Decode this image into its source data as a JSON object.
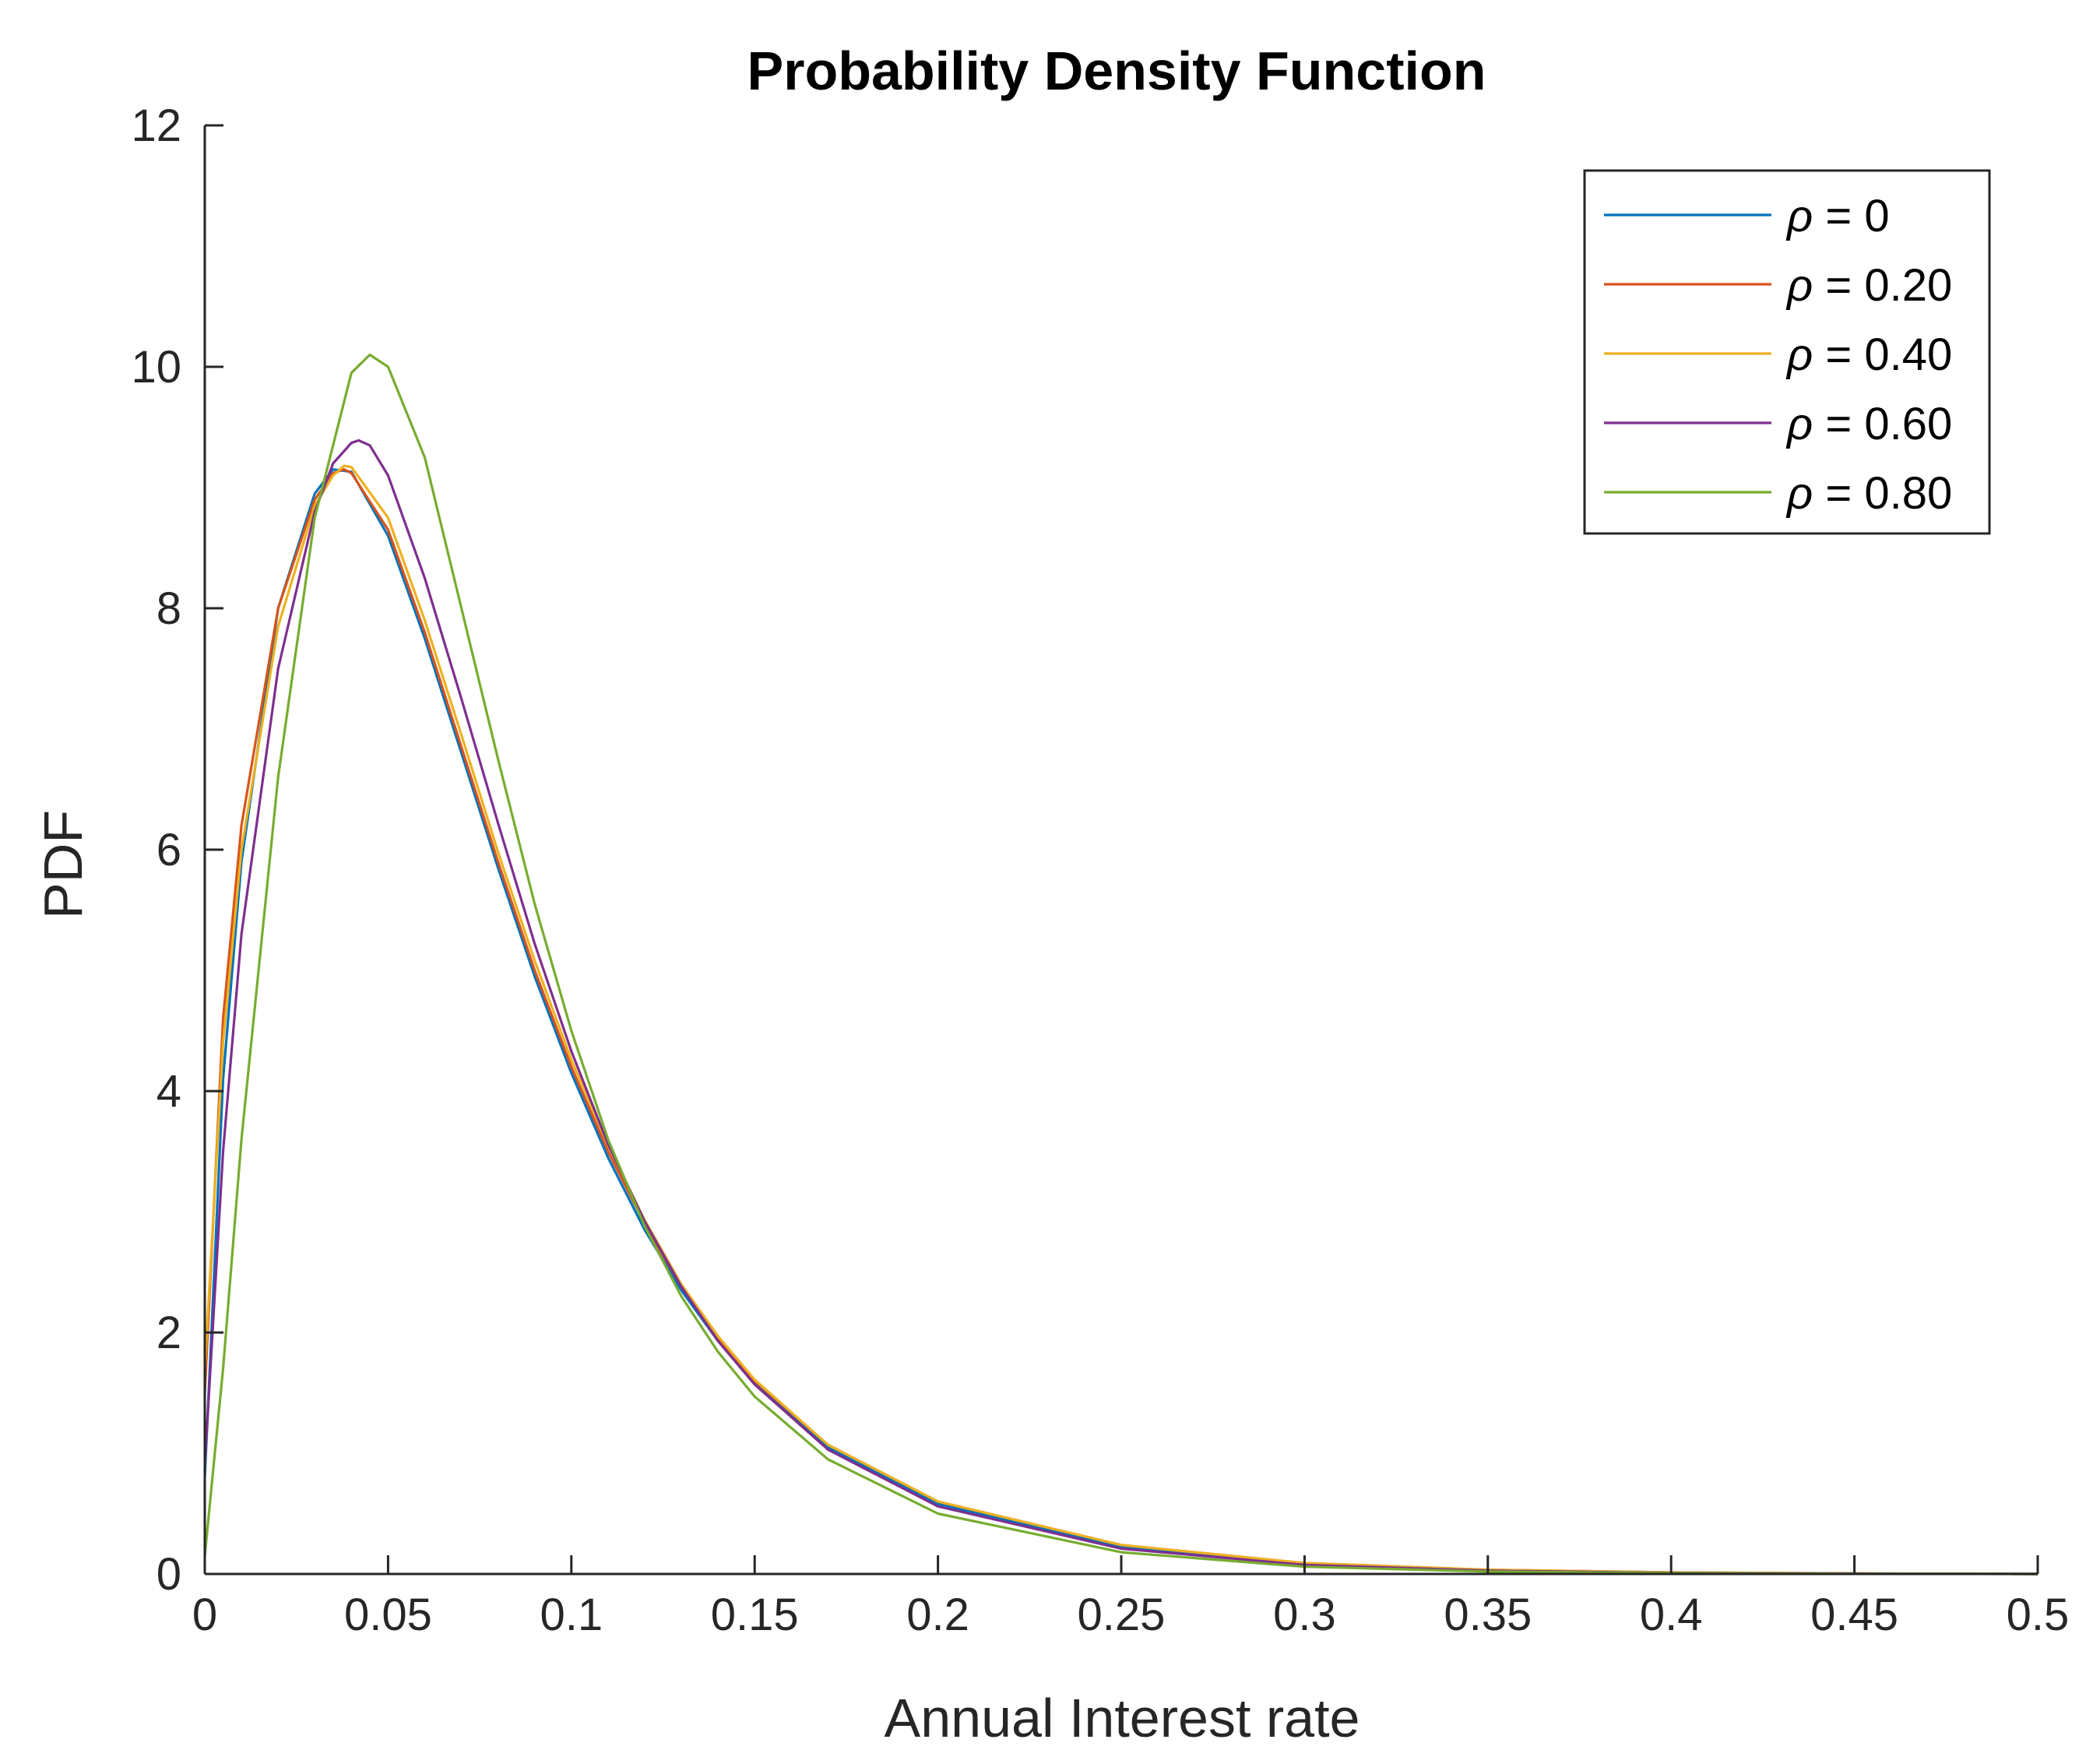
{
  "chart_data": {
    "type": "line",
    "title": "Probability Density Function",
    "xlabel": "Annual Interest rate",
    "ylabel": "PDF",
    "xlim": [
      0,
      0.5
    ],
    "ylim": [
      0,
      12
    ],
    "xticks": [
      0,
      0.05,
      0.1,
      0.15,
      0.2,
      0.25,
      0.3,
      0.35,
      0.4,
      0.45,
      0.5
    ],
    "xtick_labels": [
      "0",
      "0.05",
      "0.1",
      "0.15",
      "0.2",
      "0.25",
      "0.3",
      "0.35",
      "0.4",
      "0.45",
      "0.5"
    ],
    "yticks": [
      0,
      2,
      4,
      6,
      8,
      10,
      12
    ],
    "ytick_labels": [
      "0",
      "2",
      "4",
      "6",
      "8",
      "10",
      "12"
    ],
    "grid": false,
    "legend_position": "top-right",
    "series": [
      {
        "name": "ρ = 0",
        "legend_symbol": "ρ",
        "legend_value": "= 0",
        "color": "#0072BD",
        "x": [
          0,
          0.005,
          0.01,
          0.02,
          0.03,
          0.035,
          0.04,
          0.05,
          0.06,
          0.07,
          0.08,
          0.09,
          0.1,
          0.11,
          0.12,
          0.13,
          0.14,
          0.15,
          0.17,
          0.2,
          0.25,
          0.3,
          0.35,
          0.4,
          0.45,
          0.5
        ],
        "y": [
          0.8,
          4.1,
          5.9,
          8.0,
          8.95,
          9.15,
          9.13,
          8.6,
          7.75,
          6.8,
          5.85,
          4.95,
          4.15,
          3.45,
          2.85,
          2.35,
          1.93,
          1.58,
          1.05,
          0.58,
          0.22,
          0.08,
          0.03,
          0.01,
          0.003,
          0.0
        ]
      },
      {
        "name": "ρ = 0.20",
        "legend_symbol": "ρ",
        "legend_value": "= 0.20",
        "color": "#D95319",
        "x": [
          0,
          0.005,
          0.01,
          0.02,
          0.03,
          0.035,
          0.038,
          0.04,
          0.05,
          0.06,
          0.07,
          0.08,
          0.09,
          0.1,
          0.11,
          0.12,
          0.13,
          0.14,
          0.15,
          0.17,
          0.2,
          0.25,
          0.3,
          0.35,
          0.4,
          0.45,
          0.5
        ],
        "y": [
          1.5,
          4.6,
          6.2,
          8.0,
          8.9,
          9.12,
          9.15,
          9.12,
          8.65,
          7.8,
          6.85,
          5.9,
          5.0,
          4.2,
          3.5,
          2.9,
          2.38,
          1.96,
          1.6,
          1.07,
          0.6,
          0.24,
          0.09,
          0.035,
          0.013,
          0.004,
          0.0
        ]
      },
      {
        "name": "ρ = 0.40",
        "legend_symbol": "ρ",
        "legend_value": "= 0.40",
        "color": "#EDB120",
        "x": [
          0,
          0.005,
          0.01,
          0.02,
          0.03,
          0.035,
          0.038,
          0.04,
          0.05,
          0.06,
          0.07,
          0.08,
          0.09,
          0.1,
          0.11,
          0.12,
          0.13,
          0.14,
          0.15,
          0.17,
          0.2,
          0.25,
          0.3,
          0.35,
          0.4,
          0.45,
          0.5
        ],
        "y": [
          1.7,
          4.4,
          6.0,
          7.85,
          8.85,
          9.1,
          9.18,
          9.17,
          8.75,
          7.9,
          6.95,
          5.98,
          5.08,
          4.26,
          3.55,
          2.93,
          2.4,
          1.97,
          1.61,
          1.07,
          0.6,
          0.24,
          0.09,
          0.035,
          0.013,
          0.004,
          0.0
        ]
      },
      {
        "name": "ρ = 0.60",
        "legend_symbol": "ρ",
        "legend_value": "= 0.60",
        "color": "#7E2F8E",
        "x": [
          0,
          0.005,
          0.01,
          0.02,
          0.03,
          0.035,
          0.04,
          0.042,
          0.045,
          0.05,
          0.06,
          0.07,
          0.08,
          0.09,
          0.1,
          0.11,
          0.12,
          0.13,
          0.14,
          0.15,
          0.17,
          0.2,
          0.25,
          0.3,
          0.35,
          0.4,
          0.45,
          0.5
        ],
        "y": [
          0.9,
          3.5,
          5.3,
          7.5,
          8.8,
          9.2,
          9.37,
          9.39,
          9.35,
          9.1,
          8.25,
          7.25,
          6.22,
          5.22,
          4.33,
          3.56,
          2.92,
          2.38,
          1.93,
          1.57,
          1.03,
          0.56,
          0.21,
          0.075,
          0.027,
          0.009,
          0.003,
          0.0
        ]
      },
      {
        "name": "ρ = 0.80",
        "legend_symbol": "ρ",
        "legend_value": "= 0.80",
        "color": "#77AC30",
        "x": [
          0,
          0.005,
          0.01,
          0.02,
          0.03,
          0.04,
          0.045,
          0.05,
          0.06,
          0.07,
          0.08,
          0.09,
          0.1,
          0.11,
          0.12,
          0.13,
          0.14,
          0.15,
          0.17,
          0.2,
          0.25,
          0.3,
          0.35,
          0.4,
          0.45,
          0.5
        ],
        "y": [
          0.15,
          1.7,
          3.6,
          6.6,
          8.75,
          9.95,
          10.1,
          10.0,
          9.25,
          8.0,
          6.75,
          5.55,
          4.5,
          3.6,
          2.88,
          2.3,
          1.84,
          1.47,
          0.95,
          0.5,
          0.18,
          0.06,
          0.02,
          0.007,
          0.002,
          0.0
        ]
      }
    ]
  }
}
